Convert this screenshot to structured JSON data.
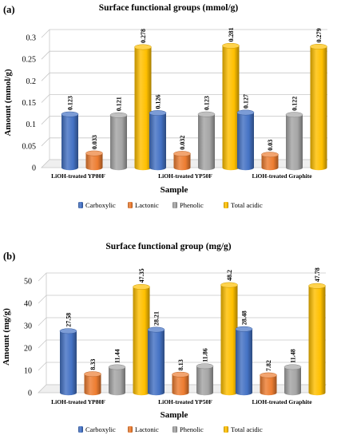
{
  "chart_data": [
    {
      "type": "bar",
      "panel_label": "(a)",
      "title": "Surface functional groups (mmol/g)",
      "xlabel": "Sample",
      "ylabel": "Amount (mmol/g)",
      "ylim": [
        0,
        0.3
      ],
      "ticks": [
        "0",
        "0.05",
        "0.1",
        "0.15",
        "0.2",
        "0.25",
        "0.3"
      ],
      "categories": [
        "LiOH-treated YP80F",
        "LiOH-treated YP50F",
        "LiOH-treated Graphite"
      ],
      "series": [
        {
          "name": "Carboxylic",
          "color": "#4472c4",
          "values": [
            0.123,
            0.126,
            0.127
          ],
          "labels": [
            "0.123",
            "0.126",
            "0.127"
          ]
        },
        {
          "name": "Lactonic",
          "color": "#ed7d31",
          "values": [
            0.033,
            0.032,
            0.03
          ],
          "labels": [
            "0.033",
            "0.032",
            "0.03"
          ]
        },
        {
          "name": "Phenolic",
          "color": "#a5a5a5",
          "values": [
            0.121,
            0.123,
            0.122
          ],
          "labels": [
            "0.121",
            "0.123",
            "0.122"
          ]
        },
        {
          "name": "Total acidic",
          "color": "#ffc000",
          "values": [
            0.278,
            0.281,
            0.279
          ],
          "labels": [
            "0.278",
            "0.281",
            "0.279"
          ]
        }
      ],
      "grid": true,
      "legend": "bottom"
    },
    {
      "type": "bar",
      "panel_label": "(b)",
      "title": "Surface functional group (mg/g)",
      "xlabel": "Sample",
      "ylabel": "Amount (mg/g)",
      "ylim": [
        0,
        50
      ],
      "ticks": [
        "0",
        "10",
        "20",
        "30",
        "40",
        "50"
      ],
      "categories": [
        "LiOH-treated YP80F",
        "LiOH-treated YP50F",
        "LiOH-treated Graphite"
      ],
      "series": [
        {
          "name": "Carboxylic",
          "color": "#4472c4",
          "values": [
            27.58,
            28.21,
            28.48
          ],
          "labels": [
            "27.58",
            "28.21",
            "28.48"
          ]
        },
        {
          "name": "Lactonic",
          "color": "#ed7d31",
          "values": [
            8.33,
            8.13,
            7.82
          ],
          "labels": [
            "8.33",
            "8.13",
            "7.82"
          ]
        },
        {
          "name": "Phenolic",
          "color": "#a5a5a5",
          "values": [
            11.44,
            11.86,
            11.48
          ],
          "labels": [
            "11.44",
            "11.86",
            "11.48"
          ]
        },
        {
          "name": "Total acidic",
          "color": "#ffc000",
          "values": [
            47.35,
            48.2,
            47.78
          ],
          "labels": [
            "47.35",
            "48.2",
            "47.78"
          ]
        }
      ],
      "grid": true,
      "legend": "bottom"
    }
  ]
}
